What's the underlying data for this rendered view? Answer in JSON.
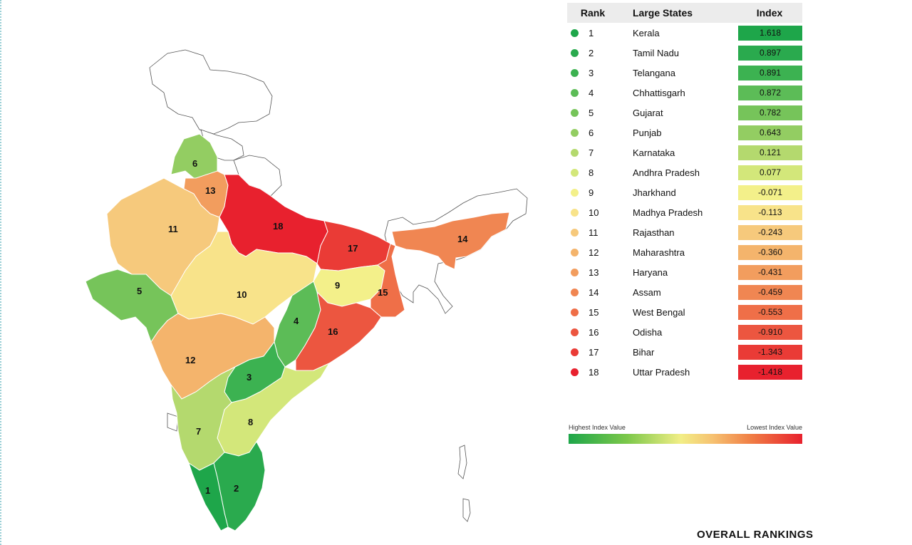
{
  "table": {
    "headers": {
      "rank": "Rank",
      "state": "Large States",
      "index": "Index"
    },
    "rows": [
      {
        "rank": "1",
        "state": "Kerala",
        "index": "1.618",
        "color": "#1ea64a"
      },
      {
        "rank": "2",
        "state": "Tamil Nadu",
        "index": "0.897",
        "color": "#2aaa4e"
      },
      {
        "rank": "3",
        "state": "Telangana",
        "index": "0.891",
        "color": "#3cb251"
      },
      {
        "rank": "4",
        "state": "Chhattisgarh",
        "index": "0.872",
        "color": "#5cbc57"
      },
      {
        "rank": "5",
        "state": "Gujarat",
        "index": "0.782",
        "color": "#76c45a"
      },
      {
        "rank": "6",
        "state": "Punjab",
        "index": "0.643",
        "color": "#93cd62"
      },
      {
        "rank": "7",
        "state": "Karnataka",
        "index": "0.121",
        "color": "#b4d96e"
      },
      {
        "rank": "8",
        "state": "Andhra Pradesh",
        "index": "0.077",
        "color": "#d3e77a"
      },
      {
        "rank": "9",
        "state": "Jharkhand",
        "index": "-0.071",
        "color": "#f3f08a"
      },
      {
        "rank": "10",
        "state": "Madhya Pradesh",
        "index": "-0.113",
        "color": "#f8e38a"
      },
      {
        "rank": "11",
        "state": "Rajasthan",
        "index": "-0.243",
        "color": "#f6c97c"
      },
      {
        "rank": "12",
        "state": "Maharashtra",
        "index": "-0.360",
        "color": "#f4b46c"
      },
      {
        "rank": "13",
        "state": "Haryana",
        "index": "-0.431",
        "color": "#f29d5e"
      },
      {
        "rank": "14",
        "state": "Assam",
        "index": "-0.459",
        "color": "#f08652"
      },
      {
        "rank": "15",
        "state": "West Bengal",
        "index": "-0.553",
        "color": "#ef6f48"
      },
      {
        "rank": "16",
        "state": "Odisha",
        "index": "-0.910",
        "color": "#ec5640"
      },
      {
        "rank": "17",
        "state": "Bihar",
        "index": "-1.343",
        "color": "#ea3b36"
      },
      {
        "rank": "18",
        "state": "Uttar Pradesh",
        "index": "-1.418",
        "color": "#e8212e"
      }
    ]
  },
  "legend": {
    "high_label": "Highest Index Value",
    "low_label": "Lowest Index Value",
    "high_color": "#1ea64a",
    "low_color": "#e8212e"
  },
  "caption": "OVERALL RANKINGS",
  "map": {
    "unranked_color": "#ffffff",
    "labels": [
      "1",
      "2",
      "3",
      "4",
      "5",
      "6",
      "7",
      "8",
      "9",
      "10",
      "11",
      "12",
      "13",
      "14",
      "15",
      "16",
      "17",
      "18"
    ]
  }
}
